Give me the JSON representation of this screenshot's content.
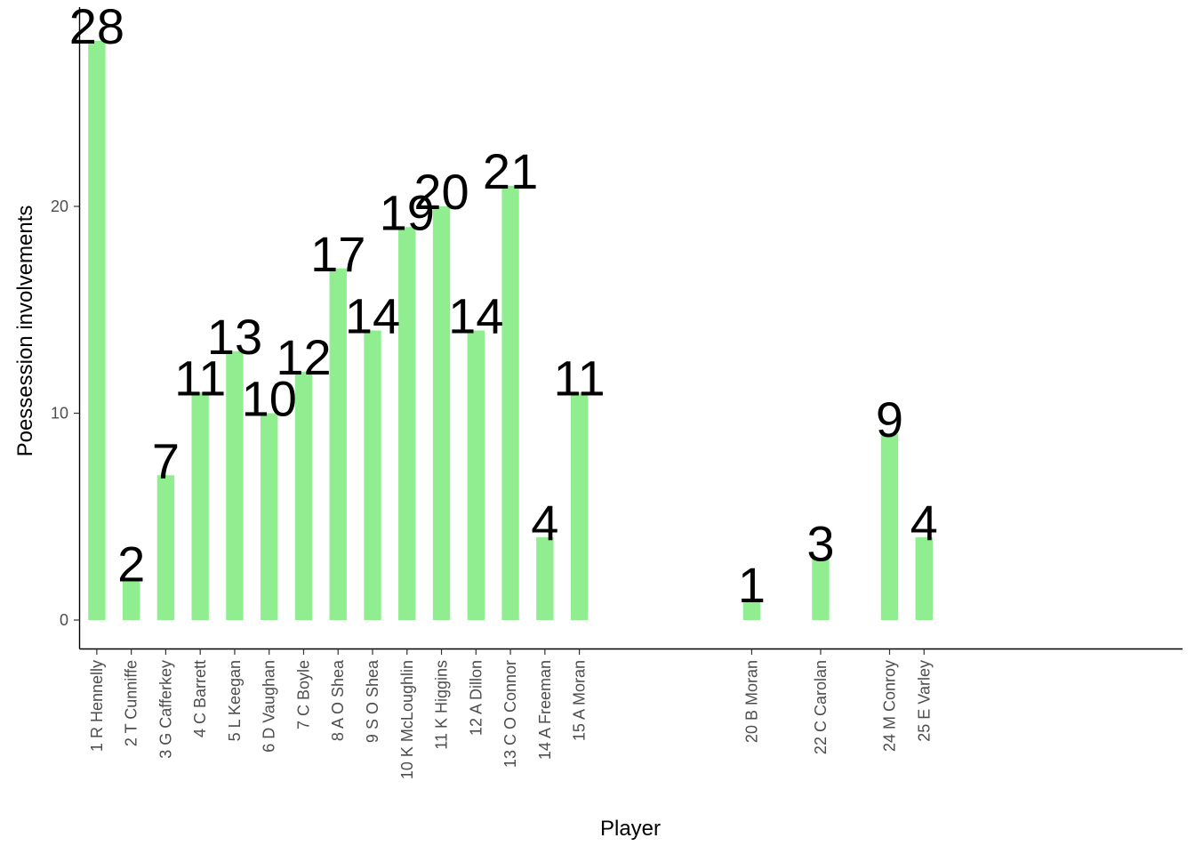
{
  "chart_data": {
    "type": "bar",
    "title": "",
    "xlabel": "Player",
    "ylabel": "Poessession involvements",
    "ylim": [
      0,
      28
    ],
    "y_ticks": [
      0,
      10,
      20
    ],
    "grid": false,
    "bar_color": "#90EE90",
    "x_positions": [
      1,
      2,
      3,
      4,
      5,
      6,
      7,
      8,
      9,
      10,
      11,
      12,
      13,
      14,
      15,
      20,
      22,
      24,
      25
    ],
    "x_range": [
      0.5,
      32.5
    ],
    "categories": [
      "1 R Hennelly",
      "2 T Cunniffe",
      "3 G Cafferkey",
      "4 C Barrett",
      "5 L Keegan",
      "6 D Vaughan",
      "7 C Boyle",
      "8 A O Shea",
      "9 S O Shea",
      "10 K McLoughlin",
      "11 K Higgins",
      "12 A Dillon",
      "13 C O Connor",
      "14 A Freeman",
      "15 A Moran",
      "20 B Moran",
      "22 C Carolan",
      "24 M Conroy",
      "25 E Varley"
    ],
    "values": [
      28,
      2,
      7,
      11,
      13,
      10,
      12,
      17,
      14,
      19,
      20,
      14,
      21,
      4,
      11,
      1,
      3,
      9,
      4
    ]
  }
}
